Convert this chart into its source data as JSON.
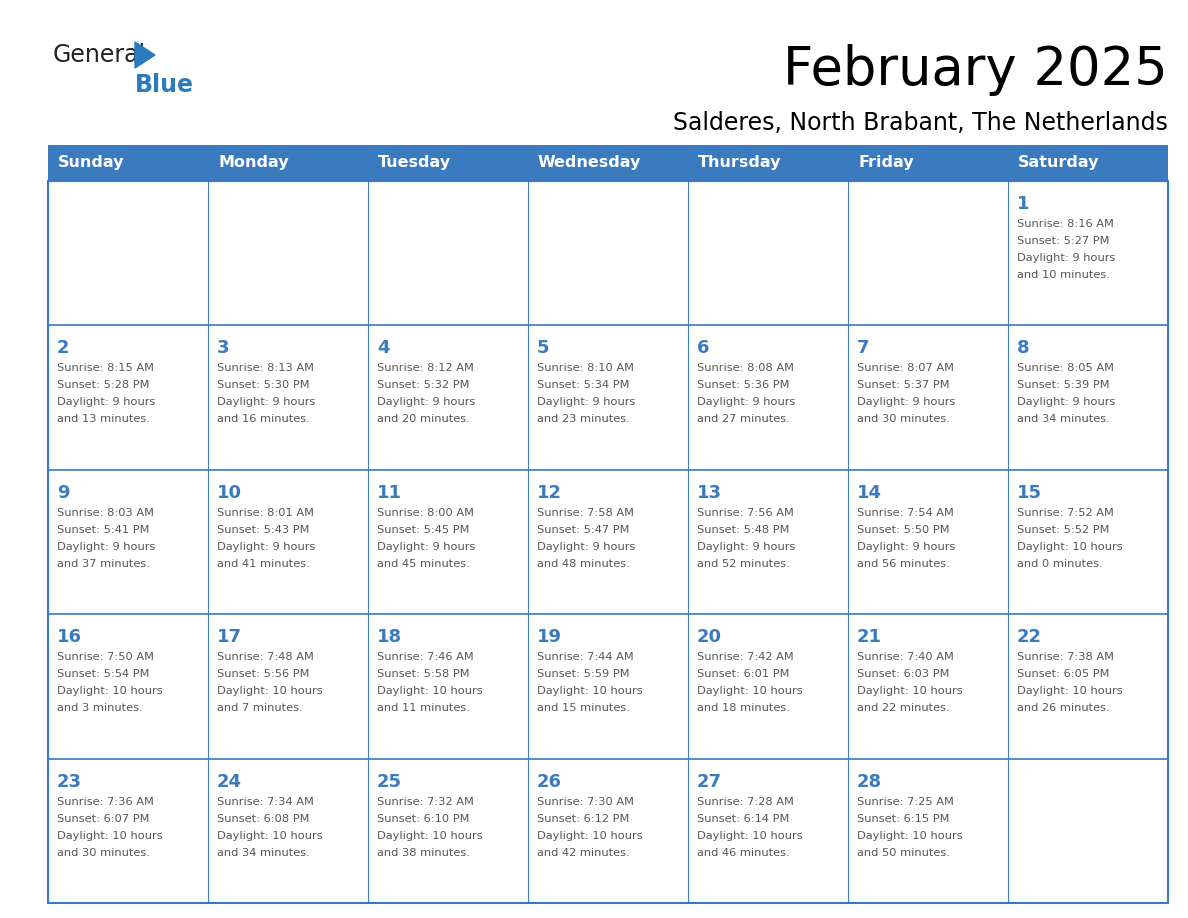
{
  "title": "February 2025",
  "subtitle": "Salderes, North Brabant, The Netherlands",
  "days_of_week": [
    "Sunday",
    "Monday",
    "Tuesday",
    "Wednesday",
    "Thursday",
    "Friday",
    "Saturday"
  ],
  "header_bg_color": "#3a7abf",
  "header_text_color": "#ffffff",
  "border_color": "#3a7abf",
  "day_number_color": "#3a7abf",
  "info_text_color": "#555555",
  "logo_general_color": "#222222",
  "logo_blue_color": "#2b7bbf",
  "calendar_data": [
    [
      null,
      null,
      null,
      null,
      null,
      null,
      {
        "day": 1,
        "sunrise": "8:16 AM",
        "sunset": "5:27 PM",
        "daylight": "9 hours and 10 minutes."
      }
    ],
    [
      {
        "day": 2,
        "sunrise": "8:15 AM",
        "sunset": "5:28 PM",
        "daylight": "9 hours and 13 minutes."
      },
      {
        "day": 3,
        "sunrise": "8:13 AM",
        "sunset": "5:30 PM",
        "daylight": "9 hours and 16 minutes."
      },
      {
        "day": 4,
        "sunrise": "8:12 AM",
        "sunset": "5:32 PM",
        "daylight": "9 hours and 20 minutes."
      },
      {
        "day": 5,
        "sunrise": "8:10 AM",
        "sunset": "5:34 PM",
        "daylight": "9 hours and 23 minutes."
      },
      {
        "day": 6,
        "sunrise": "8:08 AM",
        "sunset": "5:36 PM",
        "daylight": "9 hours and 27 minutes."
      },
      {
        "day": 7,
        "sunrise": "8:07 AM",
        "sunset": "5:37 PM",
        "daylight": "9 hours and 30 minutes."
      },
      {
        "day": 8,
        "sunrise": "8:05 AM",
        "sunset": "5:39 PM",
        "daylight": "9 hours and 34 minutes."
      }
    ],
    [
      {
        "day": 9,
        "sunrise": "8:03 AM",
        "sunset": "5:41 PM",
        "daylight": "9 hours and 37 minutes."
      },
      {
        "day": 10,
        "sunrise": "8:01 AM",
        "sunset": "5:43 PM",
        "daylight": "9 hours and 41 minutes."
      },
      {
        "day": 11,
        "sunrise": "8:00 AM",
        "sunset": "5:45 PM",
        "daylight": "9 hours and 45 minutes."
      },
      {
        "day": 12,
        "sunrise": "7:58 AM",
        "sunset": "5:47 PM",
        "daylight": "9 hours and 48 minutes."
      },
      {
        "day": 13,
        "sunrise": "7:56 AM",
        "sunset": "5:48 PM",
        "daylight": "9 hours and 52 minutes."
      },
      {
        "day": 14,
        "sunrise": "7:54 AM",
        "sunset": "5:50 PM",
        "daylight": "9 hours and 56 minutes."
      },
      {
        "day": 15,
        "sunrise": "7:52 AM",
        "sunset": "5:52 PM",
        "daylight": "10 hours and 0 minutes."
      }
    ],
    [
      {
        "day": 16,
        "sunrise": "7:50 AM",
        "sunset": "5:54 PM",
        "daylight": "10 hours and 3 minutes."
      },
      {
        "day": 17,
        "sunrise": "7:48 AM",
        "sunset": "5:56 PM",
        "daylight": "10 hours and 7 minutes."
      },
      {
        "day": 18,
        "sunrise": "7:46 AM",
        "sunset": "5:58 PM",
        "daylight": "10 hours and 11 minutes."
      },
      {
        "day": 19,
        "sunrise": "7:44 AM",
        "sunset": "5:59 PM",
        "daylight": "10 hours and 15 minutes."
      },
      {
        "day": 20,
        "sunrise": "7:42 AM",
        "sunset": "6:01 PM",
        "daylight": "10 hours and 18 minutes."
      },
      {
        "day": 21,
        "sunrise": "7:40 AM",
        "sunset": "6:03 PM",
        "daylight": "10 hours and 22 minutes."
      },
      {
        "day": 22,
        "sunrise": "7:38 AM",
        "sunset": "6:05 PM",
        "daylight": "10 hours and 26 minutes."
      }
    ],
    [
      {
        "day": 23,
        "sunrise": "7:36 AM",
        "sunset": "6:07 PM",
        "daylight": "10 hours and 30 minutes."
      },
      {
        "day": 24,
        "sunrise": "7:34 AM",
        "sunset": "6:08 PM",
        "daylight": "10 hours and 34 minutes."
      },
      {
        "day": 25,
        "sunrise": "7:32 AM",
        "sunset": "6:10 PM",
        "daylight": "10 hours and 38 minutes."
      },
      {
        "day": 26,
        "sunrise": "7:30 AM",
        "sunset": "6:12 PM",
        "daylight": "10 hours and 42 minutes."
      },
      {
        "day": 27,
        "sunrise": "7:28 AM",
        "sunset": "6:14 PM",
        "daylight": "10 hours and 46 minutes."
      },
      {
        "day": 28,
        "sunrise": "7:25 AM",
        "sunset": "6:15 PM",
        "daylight": "10 hours and 50 minutes."
      },
      null
    ]
  ],
  "figsize": [
    11.88,
    9.18
  ],
  "dpi": 100
}
